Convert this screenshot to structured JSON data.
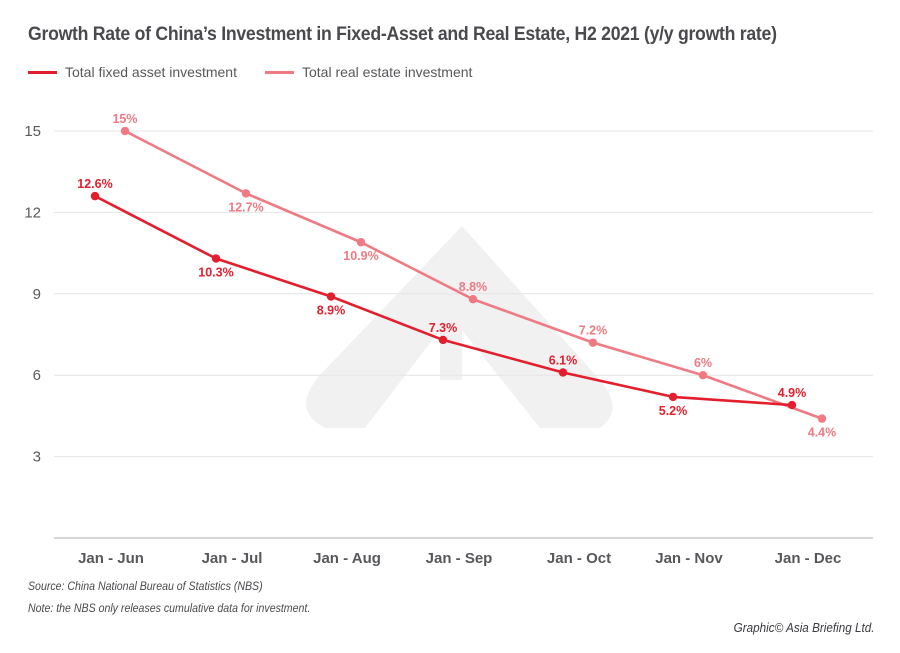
{
  "chart_data": {
    "type": "line",
    "title": "Growth Rate of China’s Investment in Fixed-Asset and Real Estate, H2 2021 (y/y growth rate)",
    "xlabel": "",
    "ylabel": "",
    "categories": [
      "Jan - Jun",
      "Jan - Jul",
      "Jan - Aug",
      "Jan - Sep",
      "Jan - Oct",
      "Jan - Nov",
      "Jan - Dec"
    ],
    "yticks": [
      3,
      6,
      9,
      12,
      15
    ],
    "ylim": [
      0,
      15
    ],
    "grid": true,
    "legend_position": "top-left",
    "series": [
      {
        "name": "Total fixed asset investment",
        "color": "#e31e2d",
        "values": [
          12.6,
          10.3,
          8.9,
          7.3,
          6.1,
          5.2,
          4.9
        ],
        "labels": [
          "12.6%",
          "10.3%",
          "8.9%",
          "7.3%",
          "6.1%",
          "5.2%",
          "4.9%"
        ]
      },
      {
        "name": "Total real estate investment",
        "color": "#ef7a83",
        "values": [
          15,
          12.7,
          10.9,
          8.8,
          7.2,
          6,
          4.4
        ],
        "labels": [
          "15%",
          "12.7%",
          "10.9%",
          "8.8%",
          "7.2%",
          "6%",
          "4.4%"
        ]
      }
    ]
  },
  "footer": {
    "source": "Source: China National Bureau of Statistics (NBS)",
    "note": "Note: the NBS only releases cumulative data for investment.",
    "credit": "Graphic© Asia Briefing Ltd."
  }
}
